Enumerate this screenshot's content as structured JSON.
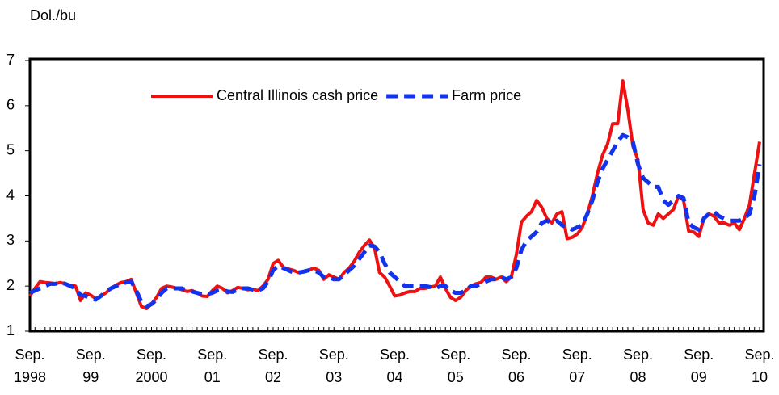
{
  "chart_data": {
    "type": "line",
    "y_label": "Dol./bu",
    "categories": [
      "Sep.\n1998",
      null,
      null,
      null,
      null,
      null,
      null,
      null,
      null,
      null,
      null,
      null,
      "Sep.\n99",
      null,
      null,
      null,
      null,
      null,
      null,
      null,
      null,
      null,
      null,
      null,
      "Sep.\n2000",
      null,
      null,
      null,
      null,
      null,
      null,
      null,
      null,
      null,
      null,
      null,
      "Sep.\n01",
      null,
      null,
      null,
      null,
      null,
      null,
      null,
      null,
      null,
      null,
      null,
      "Sep.\n02",
      null,
      null,
      null,
      null,
      null,
      null,
      null,
      null,
      null,
      null,
      null,
      "Sep.\n03",
      null,
      null,
      null,
      null,
      null,
      null,
      null,
      null,
      null,
      null,
      null,
      "Sep.\n04",
      null,
      null,
      null,
      null,
      null,
      null,
      null,
      null,
      null,
      null,
      null,
      "Sep.\n05",
      null,
      null,
      null,
      null,
      null,
      null,
      null,
      null,
      null,
      null,
      null,
      "Sep.\n06",
      null,
      null,
      null,
      null,
      null,
      null,
      null,
      null,
      null,
      null,
      null,
      "Sep.\n07",
      null,
      null,
      null,
      null,
      null,
      null,
      null,
      null,
      null,
      null,
      null,
      "Sep.\n08",
      null,
      null,
      null,
      null,
      null,
      null,
      null,
      null,
      null,
      null,
      null,
      "Sep.\n09",
      null,
      null,
      null,
      null,
      null,
      null,
      null,
      null,
      null,
      null,
      null,
      "Sep.\n10"
    ],
    "series": [
      {
        "name": "Central Illinois cash price",
        "color": "#ee1111",
        "linestyle": "solid",
        "values": [
          1.78,
          1.95,
          2.1,
          2.08,
          2.07,
          2.05,
          2.08,
          2.05,
          2.02,
          2.0,
          1.68,
          1.85,
          1.8,
          1.72,
          1.78,
          1.85,
          1.95,
          2.02,
          2.08,
          2.1,
          2.15,
          1.85,
          1.55,
          1.5,
          1.6,
          1.75,
          1.95,
          2.0,
          1.98,
          1.95,
          1.92,
          1.88,
          1.9,
          1.85,
          1.78,
          1.77,
          1.9,
          2.0,
          1.95,
          1.85,
          1.9,
          1.97,
          1.95,
          1.92,
          1.93,
          1.9,
          2.0,
          2.15,
          2.5,
          2.57,
          2.42,
          2.38,
          2.35,
          2.3,
          2.32,
          2.35,
          2.4,
          2.35,
          2.15,
          2.25,
          2.2,
          2.15,
          2.3,
          2.4,
          2.55,
          2.75,
          2.9,
          3.02,
          2.85,
          2.3,
          2.2,
          2.0,
          1.78,
          1.8,
          1.85,
          1.88,
          1.88,
          1.95,
          1.95,
          1.98,
          2.0,
          2.2,
          1.95,
          1.75,
          1.68,
          1.75,
          1.9,
          2.0,
          2.05,
          2.08,
          2.2,
          2.2,
          2.15,
          2.2,
          2.1,
          2.2,
          2.7,
          3.42,
          3.55,
          3.65,
          3.9,
          3.75,
          3.5,
          3.4,
          3.6,
          3.65,
          3.05,
          3.08,
          3.15,
          3.3,
          3.6,
          4.0,
          4.5,
          4.9,
          5.15,
          5.6,
          5.6,
          6.55,
          5.9,
          5.1,
          4.8,
          3.7,
          3.4,
          3.35,
          3.6,
          3.5,
          3.6,
          3.7,
          4.0,
          3.9,
          3.22,
          3.2,
          3.1,
          3.5,
          3.6,
          3.55,
          3.4,
          3.4,
          3.35,
          3.4,
          3.25,
          3.5,
          3.8,
          4.5,
          5.2
        ]
      },
      {
        "name": "Farm price",
        "color": "#1133ee",
        "linestyle": "dashed",
        "values": [
          1.85,
          1.9,
          1.95,
          2.0,
          2.05,
          2.05,
          2.08,
          2.05,
          2.0,
          1.95,
          1.8,
          1.78,
          1.72,
          1.7,
          1.78,
          1.88,
          1.95,
          2.0,
          2.05,
          2.08,
          2.1,
          1.9,
          1.65,
          1.55,
          1.6,
          1.7,
          1.85,
          1.95,
          1.95,
          1.95,
          1.95,
          1.9,
          1.88,
          1.85,
          1.82,
          1.82,
          1.85,
          1.9,
          1.92,
          1.88,
          1.87,
          1.92,
          1.95,
          1.95,
          1.92,
          1.9,
          1.95,
          2.1,
          2.35,
          2.45,
          2.4,
          2.35,
          2.3,
          2.3,
          2.32,
          2.35,
          2.35,
          2.3,
          2.2,
          2.2,
          2.15,
          2.15,
          2.25,
          2.35,
          2.45,
          2.6,
          2.75,
          2.9,
          2.88,
          2.75,
          2.5,
          2.3,
          2.2,
          2.1,
          2.0,
          2.0,
          2.0,
          2.0,
          2.0,
          1.98,
          1.95,
          2.0,
          2.0,
          1.9,
          1.85,
          1.85,
          1.9,
          2.0,
          2.0,
          2.05,
          2.1,
          2.15,
          2.15,
          2.2,
          2.15,
          2.2,
          2.4,
          2.8,
          3.0,
          3.1,
          3.2,
          3.4,
          3.45,
          3.4,
          3.45,
          3.35,
          3.3,
          3.25,
          3.3,
          3.35,
          3.6,
          3.9,
          4.3,
          4.6,
          4.8,
          5.0,
          5.2,
          5.35,
          5.3,
          5.2,
          4.7,
          4.4,
          4.3,
          4.2,
          4.2,
          3.9,
          3.8,
          3.9,
          4.0,
          3.95,
          3.4,
          3.3,
          3.25,
          3.5,
          3.6,
          3.65,
          3.55,
          3.5,
          3.45,
          3.45,
          3.45,
          3.5,
          3.6,
          4.0,
          4.7
        ]
      }
    ],
    "ylim": [
      1,
      7
    ],
    "yticks": [
      1,
      2,
      3,
      4,
      5,
      6,
      7
    ],
    "grid": false,
    "legend": "top"
  }
}
